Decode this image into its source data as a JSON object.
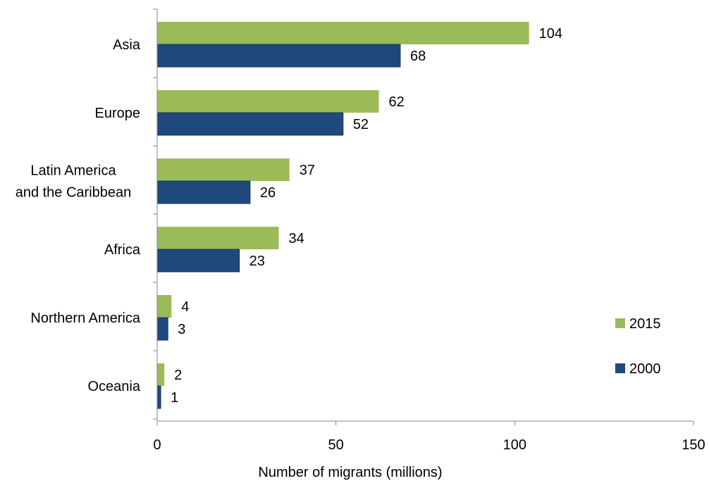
{
  "chart_data": {
    "type": "bar",
    "orientation": "horizontal",
    "title": "",
    "xlabel": "Number of migrants (millions)",
    "ylabel": "",
    "xlim": [
      0,
      150
    ],
    "x_ticks": [
      0,
      50,
      100,
      150
    ],
    "grid": false,
    "legend_position": "right",
    "categories": [
      [
        "Asia"
      ],
      [
        "Europe"
      ],
      [
        "Latin America",
        "and the Caribbean"
      ],
      [
        "Africa"
      ],
      [
        "Northern America"
      ],
      [
        "Oceania"
      ]
    ],
    "series": [
      {
        "name": "2015",
        "color": "#9BBB59",
        "values": [
          104,
          62,
          37,
          34,
          4,
          2
        ]
      },
      {
        "name": "2000",
        "color": "#1F497D",
        "values": [
          68,
          52,
          26,
          23,
          3,
          1
        ]
      }
    ],
    "legend_order": [
      "2015",
      "2000"
    ]
  }
}
